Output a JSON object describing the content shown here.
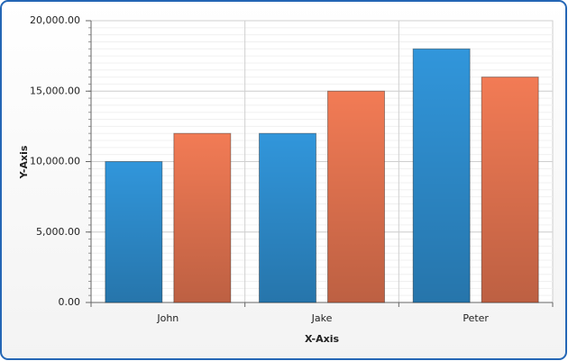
{
  "chart_data": {
    "type": "bar",
    "x_label": "X-Axis",
    "y_label": "Y-Axis",
    "categories": [
      "John",
      "Jake",
      "Peter"
    ],
    "series": [
      {
        "color": "#3196db",
        "values": [
          10000,
          12000,
          18000
        ]
      },
      {
        "color": "#f27b55",
        "values": [
          12000,
          15000,
          16000
        ]
      }
    ],
    "ylim": [
      0,
      20000
    ],
    "yticks": [
      {
        "value": 0,
        "label": "0.00"
      },
      {
        "value": 5000,
        "label": "5,000.00"
      },
      {
        "value": 10000,
        "label": "10,000.00"
      },
      {
        "value": 15000,
        "label": "15,000.00"
      },
      {
        "value": 20000,
        "label": "20,000.00"
      }
    ],
    "grid": true
  }
}
